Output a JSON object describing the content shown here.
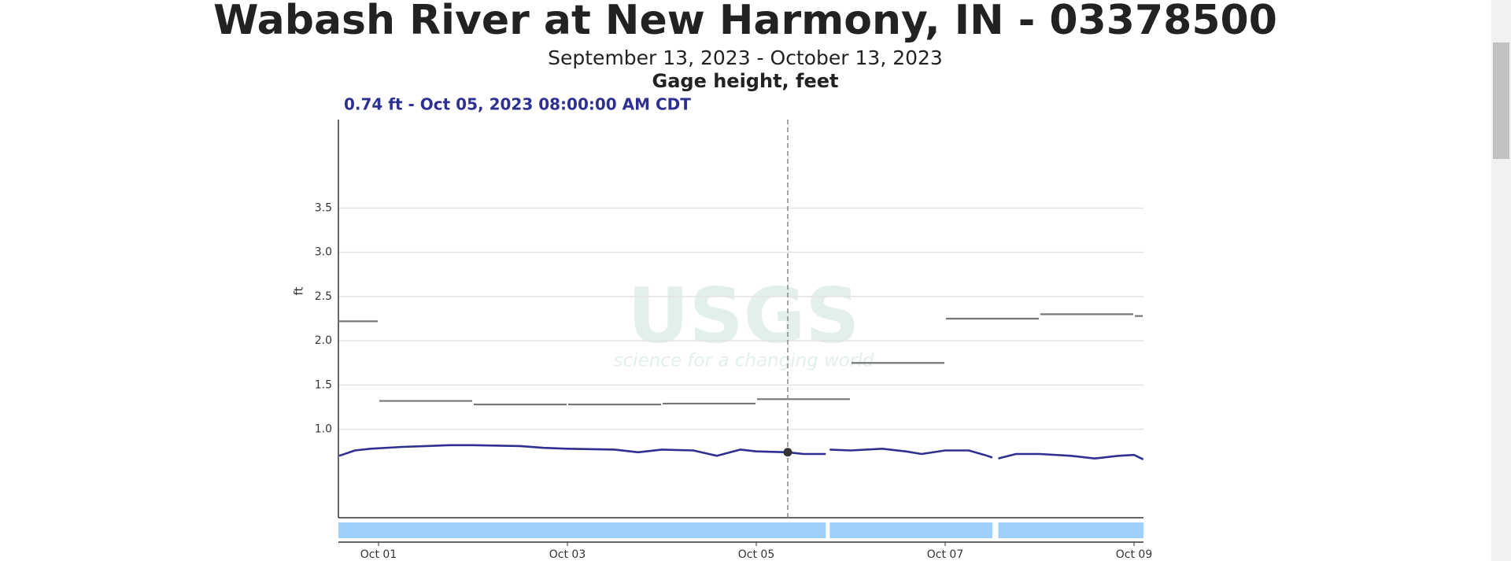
{
  "chart_data": {
    "type": "line",
    "title": "Wabash River at New Harmony, IN - 03378500",
    "subtitle": "September 13, 2023 - October 13, 2023",
    "parameter": "Gage height, feet",
    "ylabel": "ft",
    "watermark": {
      "logo": "USGS",
      "tagline": "science for a changing world"
    },
    "marker": {
      "x": "2023-10-05T08:00",
      "value": 0.74,
      "label": "0.74 ft - Oct 05, 2023 08:00:00 AM CDT",
      "color": "#2e3192"
    },
    "xlim": [
      "2023-09-30T13:48",
      "2023-10-09T02:24"
    ],
    "xticks": [
      {
        "value": "2023-10-01T00:00",
        "label": "Oct 01"
      },
      {
        "value": "2023-10-03T00:00",
        "label": "Oct 03"
      },
      {
        "value": "2023-10-05T00:00",
        "label": "Oct 05"
      },
      {
        "value": "2023-10-07T00:00",
        "label": "Oct 07"
      },
      {
        "value": "2023-10-09T00:00",
        "label": "Oct 09"
      }
    ],
    "ylim": [
      0,
      4.5
    ],
    "yticks": [
      {
        "value": 1,
        "label": "1.0"
      },
      1.5,
      {
        "value": 2,
        "label": "2.0"
      },
      2.5,
      {
        "value": 3,
        "label": "3.0"
      },
      3.5
    ],
    "grid": true,
    "series": [
      {
        "color": "#2e3192",
        "coverage_color": "#9fd0fb",
        "x": [
          "2023-09-30T14:00",
          "2023-09-30T18:00",
          "2023-09-30T22:00",
          "2023-10-01T06:00",
          "2023-10-01T12:00",
          "2023-10-01T18:00",
          "2023-10-02T00:00",
          "2023-10-02T12:00",
          "2023-10-02T18:00",
          "2023-10-03T00:00",
          "2023-10-03T12:00",
          "2023-10-03T18:00",
          "2023-10-04T00:00",
          "2023-10-04T08:00",
          "2023-10-04T14:00",
          "2023-10-04T20:00",
          "2023-10-05T00:00",
          "2023-10-05T08:00",
          "2023-10-05T12:00",
          "2023-10-05T17:40",
          "2023-10-05T18:10",
          "2023-10-05T18:40",
          "2023-10-06T00:00",
          "2023-10-06T08:00",
          "2023-10-06T14:00",
          "2023-10-06T18:00",
          "2023-10-07T00:00",
          "2023-10-07T06:00",
          "2023-10-07T10:00",
          "2023-10-07T12:00",
          "2023-10-07T12:45",
          "2023-10-07T13:30",
          "2023-10-07T18:00",
          "2023-10-08T00:00",
          "2023-10-08T08:00",
          "2023-10-08T14:00",
          "2023-10-08T20:00",
          "2023-10-09T00:00",
          "2023-10-09T02:20"
        ],
        "values": [
          0.7,
          0.76,
          0.78,
          0.8,
          0.81,
          0.82,
          0.82,
          0.81,
          0.79,
          0.78,
          0.77,
          0.74,
          0.77,
          0.76,
          0.7,
          0.77,
          0.75,
          0.74,
          0.72,
          0.72,
          null,
          0.77,
          0.76,
          0.78,
          0.75,
          0.72,
          0.76,
          0.76,
          0.71,
          0.68,
          null,
          0.67,
          0.72,
          0.72,
          0.7,
          0.67,
          0.7,
          0.71,
          0.66
        ]
      },
      {
        "color": "#777777",
        "step": true,
        "x": [
          "2023-09-30T00:00",
          "2023-10-01T00:00",
          "2023-10-02T00:00",
          "2023-10-03T00:00",
          "2023-10-04T00:00",
          "2023-10-05T00:00",
          "2023-10-06T00:00",
          "2023-10-07T00:00",
          "2023-10-08T00:00",
          "2023-10-09T00:00"
        ],
        "values": [
          2.22,
          1.32,
          1.28,
          1.28,
          1.29,
          1.34,
          1.75,
          2.25,
          2.3,
          2.28
        ]
      }
    ]
  }
}
